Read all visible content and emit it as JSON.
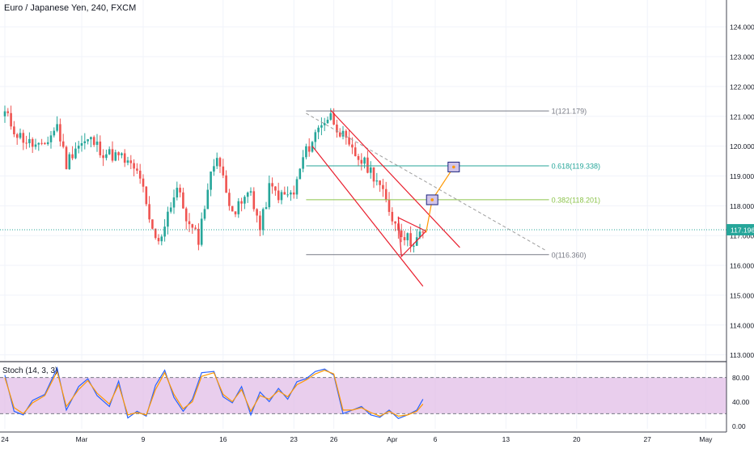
{
  "symbol_title": "Euro / Japanese Yen, 240, FXCM",
  "price_tag": "117.196",
  "chart_data": [
    {
      "type": "candlestick",
      "title": "Euro / Japanese Yen, 240, FXCM",
      "ylim": [
        112.8,
        124.9
      ],
      "y_ticks": [
        "124.000",
        "123.000",
        "122.000",
        "121.000",
        "120.000",
        "119.000",
        "118.000",
        "117.000",
        "116.000",
        "115.000",
        "114.000",
        "113.000"
      ],
      "y_tick_values": [
        124,
        123,
        122,
        121,
        120,
        119,
        118,
        117,
        116,
        115,
        114,
        113
      ],
      "x_ticks": [
        "24",
        "Mar",
        "9",
        "16",
        "23",
        "26",
        "Apr",
        "6",
        "13",
        "20",
        "27",
        "May"
      ],
      "x_tick_index": [
        0,
        25,
        45,
        71,
        94,
        107,
        126,
        140,
        163,
        186,
        209,
        228
      ],
      "current_price": 117.196,
      "grid": true,
      "colors": {
        "up": "#26a69a",
        "down": "#ef5350"
      },
      "candles": {
        "start": 121.0,
        "anchors": [
          [
            0,
            121.1
          ],
          [
            4,
            120.4
          ],
          [
            8,
            120.1
          ],
          [
            12,
            119.9
          ],
          [
            17,
            120.7
          ],
          [
            20,
            119.4
          ],
          [
            23,
            120.0
          ],
          [
            28,
            120.2
          ],
          [
            32,
            119.8
          ],
          [
            38,
            119.6
          ],
          [
            44,
            119.0
          ],
          [
            47,
            117.4
          ],
          [
            50,
            116.7
          ],
          [
            53,
            117.8
          ],
          [
            56,
            118.6
          ],
          [
            60,
            117.3
          ],
          [
            63,
            116.9
          ],
          [
            66,
            118.6
          ],
          [
            69,
            119.8
          ],
          [
            72,
            118.4
          ],
          [
            75,
            117.8
          ],
          [
            80,
            118.5
          ],
          [
            83,
            117.2
          ],
          [
            86,
            118.6
          ],
          [
            90,
            118.3
          ],
          [
            94,
            118.4
          ],
          [
            97,
            119.6
          ],
          [
            100,
            120.2
          ],
          [
            103,
            120.8
          ],
          [
            106,
            121.0
          ],
          [
            109,
            120.5
          ],
          [
            112,
            119.9
          ],
          [
            115,
            119.6
          ],
          [
            118,
            119.3
          ],
          [
            121,
            118.9
          ],
          [
            124,
            118.1
          ],
          [
            127,
            117.4
          ],
          [
            130,
            117.0
          ],
          [
            132,
            116.8
          ],
          [
            134,
            116.9
          ],
          [
            136,
            117.1
          ]
        ],
        "annotation": "approximate OHLC path traced from the screenshot; 4-hour bars indexed from the left edge"
      },
      "fibonacci": {
        "levels": [
          {
            "ratio": "1",
            "price": 121.179,
            "label": "1(121.179)",
            "color": "#787b86"
          },
          {
            "ratio": "0.618",
            "price": 119.338,
            "label": "0.618(119.338)",
            "color": "#26a69a"
          },
          {
            "ratio": "0.382",
            "price": 118.201,
            "label": "0.382(118.201)",
            "color": "#8bc34a"
          },
          {
            "ratio": "0",
            "price": 116.36,
            "label": "0(116.360)",
            "color": "#787b86"
          }
        ],
        "from_index": 98,
        "to_index": 177
      },
      "trend_channel": {
        "color": "#e91e2d",
        "upper": [
          [
            106,
            121.2
          ],
          [
            148,
            116.6
          ]
        ],
        "lower": [
          [
            100,
            120.0
          ],
          [
            136,
            115.3
          ]
        ]
      },
      "dashed_trendline": {
        "color": "#9e9e9e",
        "from": [
          98,
          121.1
        ],
        "to": [
          176,
          116.5
        ]
      },
      "triangle": {
        "color": "#e91e2d",
        "points": [
          [
            128,
            117.6
          ],
          [
            137,
            117.15
          ],
          [
            129,
            116.3
          ]
        ]
      },
      "projection": {
        "color": "#ff9800",
        "path": [
          [
            137,
            117.1
          ],
          [
            139,
            118.2
          ],
          [
            146,
            119.3
          ]
        ],
        "targets": [
          [
            139,
            118.2
          ],
          [
            146,
            119.3
          ]
        ]
      }
    },
    {
      "type": "line",
      "title": "Stoch (14, 3, 3)",
      "ylim": [
        -5,
        105
      ],
      "y_ticks": [
        "80.00",
        "40.00",
        "0.00"
      ],
      "y_tick_values": [
        80,
        40,
        0
      ],
      "band": [
        20,
        80
      ],
      "band_color": "#e1bee7",
      "series": [
        {
          "color": "#2962ff",
          "x": [
            0,
            3,
            6,
            9,
            13,
            17,
            20,
            24,
            27,
            30,
            34,
            37,
            40,
            43,
            46,
            49,
            52,
            55,
            58,
            61,
            64,
            68,
            71,
            74,
            77,
            80,
            83,
            86,
            89,
            92,
            95,
            98,
            101,
            104,
            107,
            110,
            113,
            116,
            119,
            122,
            125,
            128,
            131,
            134,
            136
          ],
          "values": [
            84,
            24,
            18,
            42,
            52,
            96,
            26,
            65,
            78,
            50,
            32,
            74,
            13,
            24,
            16,
            67,
            92,
            47,
            24,
            44,
            88,
            90,
            48,
            38,
            65,
            18,
            56,
            40,
            62,
            44,
            73,
            78,
            90,
            94,
            84,
            20,
            26,
            32,
            18,
            14,
            26,
            12,
            18,
            26,
            44
          ]
        },
        {
          "color": "#ff9800",
          "x": [
            0,
            3,
            6,
            9,
            13,
            17,
            20,
            24,
            27,
            30,
            34,
            37,
            40,
            43,
            46,
            49,
            52,
            55,
            58,
            61,
            64,
            68,
            71,
            74,
            77,
            80,
            83,
            86,
            89,
            92,
            95,
            98,
            101,
            104,
            107,
            110,
            113,
            116,
            119,
            122,
            125,
            128,
            131,
            134,
            136
          ],
          "values": [
            80,
            30,
            20,
            38,
            50,
            90,
            32,
            60,
            75,
            54,
            36,
            68,
            18,
            22,
            18,
            60,
            88,
            52,
            28,
            40,
            82,
            88,
            52,
            40,
            60,
            24,
            50,
            44,
            58,
            48,
            68,
            76,
            86,
            92,
            86,
            26,
            26,
            30,
            22,
            16,
            24,
            16,
            18,
            24,
            36
          ]
        }
      ]
    }
  ]
}
